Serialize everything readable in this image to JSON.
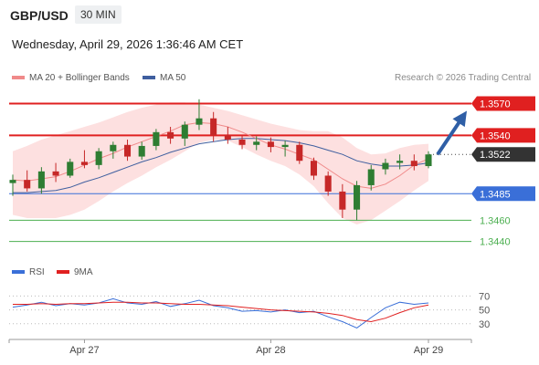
{
  "header": {
    "pair": "GBP/USD",
    "timeframe": "30 MIN",
    "datetime": "Wednesday, April 29, 2026 1:36:46 AM CET"
  },
  "legend": {
    "ma20": "MA 20 + Bollinger Bands",
    "ma50": "MA 50",
    "rsi": "RSI",
    "rsi_ma": "9MA",
    "credit": "Research © 2026 Trading Central"
  },
  "colors": {
    "bull": "#2e7d32",
    "bear": "#c62828",
    "ma20": "#f08a8a",
    "ma50": "#3f5f9f",
    "band": "#fde0e0",
    "resistance": "#e02020",
    "support": "#3a6fd8",
    "target": "#4caf50",
    "current": "#333333",
    "rsi": "#3a6fd8",
    "rsi_ma": "#e02020",
    "arrow": "#2f5fa6"
  },
  "chart_data": {
    "type": "candlestick",
    "x_tick_labels": [
      "Apr 27",
      "Apr 28",
      "Apr 29"
    ],
    "price_levels": [
      {
        "value": 1.357,
        "label": "1.3570",
        "kind": "resistance"
      },
      {
        "value": 1.354,
        "label": "1.3540",
        "kind": "resistance"
      },
      {
        "value": 1.3522,
        "label": "1.3522",
        "kind": "current"
      },
      {
        "value": 1.3485,
        "label": "1.3485",
        "kind": "support"
      },
      {
        "value": 1.346,
        "label": "1.3460",
        "kind": "target"
      },
      {
        "value": 1.344,
        "label": "1.3440",
        "kind": "target"
      }
    ],
    "price_range": [
      1.3425,
      1.3585
    ],
    "forecast_arrow": {
      "to": 1.357
    },
    "rsi_axis": {
      "range": [
        10,
        85
      ],
      "ticks": [
        "70",
        "50",
        "30"
      ]
    },
    "series_ma20": [
      1.3498,
      1.3497,
      1.3499,
      1.3501,
      1.3506,
      1.3512,
      1.3518,
      1.3523,
      1.3529,
      1.3534,
      1.3539,
      1.3544,
      1.355,
      1.3552,
      1.3551,
      1.3548,
      1.3543,
      1.3537,
      1.3531,
      1.3527,
      1.3522,
      1.3517,
      1.3508,
      1.3499,
      1.3492,
      1.349,
      1.3494,
      1.3502,
      1.3512,
      1.3518
    ],
    "series_ma50": [
      1.3486,
      1.3486,
      1.3487,
      1.3488,
      1.3491,
      1.3496,
      1.35,
      1.3505,
      1.351,
      1.3515,
      1.3519,
      1.3524,
      1.3528,
      1.3532,
      1.3534,
      1.3536,
      1.3537,
      1.3537,
      1.3536,
      1.3535,
      1.3533,
      1.353,
      1.3526,
      1.3522,
      1.3516,
      1.3513,
      1.3511,
      1.3511,
      1.3512,
      1.3514
    ],
    "series_bb_upper": [
      1.3525,
      1.353,
      1.3536,
      1.354,
      1.3544,
      1.3548,
      1.3552,
      1.3557,
      1.3562,
      1.3566,
      1.3569,
      1.3571,
      1.3571,
      1.3569,
      1.3566,
      1.3563,
      1.3559,
      1.3555,
      1.3551,
      1.3548,
      1.3545,
      1.3544,
      1.3544,
      1.3538,
      1.3528,
      1.3522,
      1.3523,
      1.3528,
      1.3531,
      1.3532
    ],
    "series_bb_lower": [
      1.3465,
      1.3462,
      1.3462,
      1.3462,
      1.3465,
      1.347,
      1.3478,
      1.3487,
      1.3495,
      1.3502,
      1.351,
      1.3517,
      1.3525,
      1.3533,
      1.3536,
      1.3535,
      1.3529,
      1.3522,
      1.3516,
      1.3511,
      1.3503,
      1.3492,
      1.3476,
      1.3462,
      1.3456,
      1.346,
      1.3469,
      1.3478,
      1.3488,
      1.3497
    ],
    "series_rsi": [
      54,
      57,
      61,
      56,
      59,
      57,
      60,
      66,
      60,
      58,
      62,
      55,
      59,
      64,
      56,
      53,
      48,
      49,
      47,
      50,
      46,
      48,
      40,
      33,
      24,
      39,
      53,
      61,
      58,
      60
    ],
    "series_rsi_ma": [
      58,
      58,
      59,
      58,
      59,
      59,
      60,
      61,
      61,
      60,
      60,
      59,
      58,
      58,
      57,
      56,
      54,
      52,
      50,
      49,
      48,
      47,
      45,
      42,
      36,
      33,
      38,
      46,
      53,
      57
    ],
    "candles": [
      {
        "o": 1.3495,
        "h": 1.3503,
        "l": 1.3483,
        "c": 1.3498
      },
      {
        "o": 1.3498,
        "h": 1.3507,
        "l": 1.3487,
        "c": 1.349
      },
      {
        "o": 1.349,
        "h": 1.351,
        "l": 1.3485,
        "c": 1.3506
      },
      {
        "o": 1.3506,
        "h": 1.3514,
        "l": 1.3496,
        "c": 1.3502
      },
      {
        "o": 1.3502,
        "h": 1.3518,
        "l": 1.35,
        "c": 1.3515
      },
      {
        "o": 1.3515,
        "h": 1.3526,
        "l": 1.3509,
        "c": 1.3512
      },
      {
        "o": 1.3512,
        "h": 1.3528,
        "l": 1.3508,
        "c": 1.3525
      },
      {
        "o": 1.3525,
        "h": 1.3534,
        "l": 1.3518,
        "c": 1.3531
      },
      {
        "o": 1.3531,
        "h": 1.3536,
        "l": 1.3516,
        "c": 1.352
      },
      {
        "o": 1.352,
        "h": 1.3534,
        "l": 1.3517,
        "c": 1.353
      },
      {
        "o": 1.353,
        "h": 1.3546,
        "l": 1.3526,
        "c": 1.3543
      },
      {
        "o": 1.3543,
        "h": 1.3548,
        "l": 1.3532,
        "c": 1.3537
      },
      {
        "o": 1.3537,
        "h": 1.3553,
        "l": 1.353,
        "c": 1.355
      },
      {
        "o": 1.355,
        "h": 1.3574,
        "l": 1.3545,
        "c": 1.3556
      },
      {
        "o": 1.3556,
        "h": 1.3562,
        "l": 1.3534,
        "c": 1.354
      },
      {
        "o": 1.354,
        "h": 1.3548,
        "l": 1.3532,
        "c": 1.3536
      },
      {
        "o": 1.3536,
        "h": 1.354,
        "l": 1.3527,
        "c": 1.3531
      },
      {
        "o": 1.3531,
        "h": 1.3539,
        "l": 1.3526,
        "c": 1.3534
      },
      {
        "o": 1.3534,
        "h": 1.3538,
        "l": 1.3524,
        "c": 1.3529
      },
      {
        "o": 1.3529,
        "h": 1.3535,
        "l": 1.352,
        "c": 1.3531
      },
      {
        "o": 1.3531,
        "h": 1.3534,
        "l": 1.3513,
        "c": 1.3516
      },
      {
        "o": 1.3516,
        "h": 1.3519,
        "l": 1.3498,
        "c": 1.3502
      },
      {
        "o": 1.3502,
        "h": 1.3506,
        "l": 1.3483,
        "c": 1.3487
      },
      {
        "o": 1.3487,
        "h": 1.3494,
        "l": 1.3462,
        "c": 1.347
      },
      {
        "o": 1.347,
        "h": 1.3497,
        "l": 1.346,
        "c": 1.3493
      },
      {
        "o": 1.3493,
        "h": 1.3512,
        "l": 1.3488,
        "c": 1.3508
      },
      {
        "o": 1.3508,
        "h": 1.3518,
        "l": 1.3503,
        "c": 1.3514
      },
      {
        "o": 1.3514,
        "h": 1.3522,
        "l": 1.3508,
        "c": 1.3516
      },
      {
        "o": 1.3516,
        "h": 1.3522,
        "l": 1.3507,
        "c": 1.3511
      },
      {
        "o": 1.3511,
        "h": 1.3525,
        "l": 1.3509,
        "c": 1.3522
      }
    ]
  }
}
